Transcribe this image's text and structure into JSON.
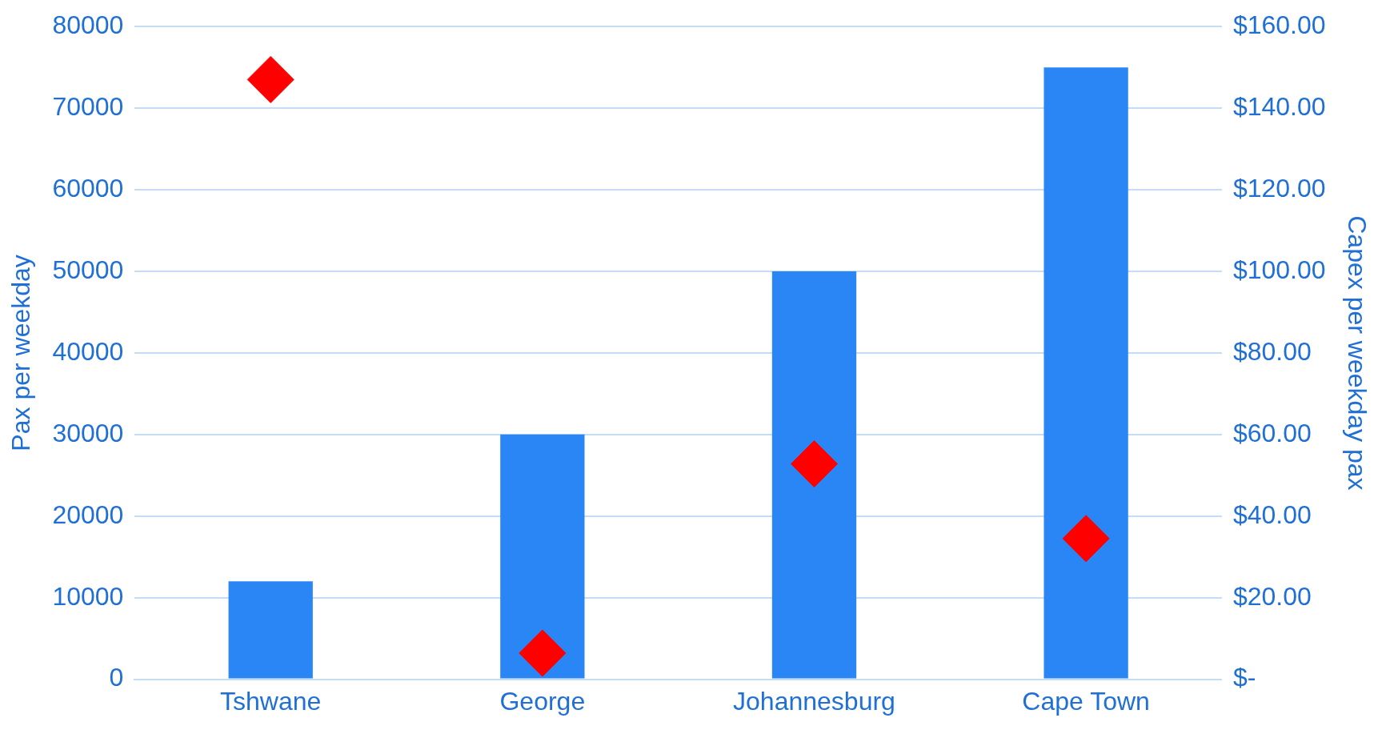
{
  "chart_data": {
    "type": "bar",
    "categories": [
      "Tshwane",
      "George",
      "Johannesburg",
      "Cape Town"
    ],
    "series": [
      {
        "color": "#2a86f5",
        "values": [
          12000,
          30000,
          50000,
          75000
        ]
      },
      {
        "type": "scatter",
        "color": "#ff0000",
        "axis": "y2",
        "x": [
          "Tshwane",
          "George",
          "Johannesburg",
          "Cape Town"
        ],
        "values": [
          147,
          6.4,
          52.8,
          34.5
        ]
      }
    ],
    "ylabel": "Pax per weekday",
    "y2label": "Capex per weekday pax",
    "ylim": [
      0,
      80000
    ],
    "yticks": [
      0,
      10000,
      20000,
      30000,
      40000,
      50000,
      60000,
      70000,
      80000
    ],
    "y2lim": [
      0,
      160
    ],
    "y2ticks": [
      {
        "value": 0,
        "label": "$-"
      },
      {
        "value": 20,
        "label": "$20.00"
      },
      {
        "value": 40,
        "label": "$40.00"
      },
      {
        "value": 60,
        "label": "$60.00"
      },
      {
        "value": 80,
        "label": "$80.00"
      },
      {
        "value": 100,
        "label": "$100.00"
      },
      {
        "value": 120,
        "label": "$120.00"
      },
      {
        "value": 140,
        "label": "$140.00"
      },
      {
        "value": 160,
        "label": "$160.00"
      }
    ],
    "grid": "y",
    "legend": false,
    "marker": "diamond"
  }
}
